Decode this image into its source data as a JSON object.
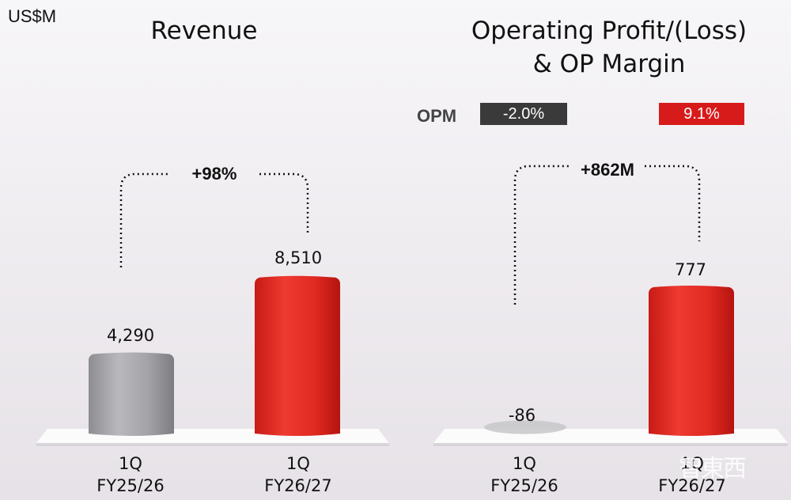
{
  "unit": "US$M",
  "watermark": "智東西",
  "chart_data": [
    {
      "type": "bar",
      "title": "Revenue",
      "categories": [
        "1Q\nFY25/26",
        "1Q\nFY26/27"
      ],
      "category_lines": [
        [
          "1Q",
          "FY25/26"
        ],
        [
          "1Q",
          "FY26/27"
        ]
      ],
      "values": [
        4290,
        8510
      ],
      "value_labels": [
        "4,290",
        "8,510"
      ],
      "change_label": "+98%",
      "colors": [
        "#9c9ca0",
        "#e02a22"
      ],
      "ylim": [
        0,
        10000
      ]
    },
    {
      "type": "bar",
      "title": "Operating Profit/(Loss)\n& OP Margin",
      "title_lines": [
        "Operating Profit/(Loss)",
        "& OP Margin"
      ],
      "categories": [
        "1Q\nFY25/26",
        "1Q\nFY26/27"
      ],
      "category_lines": [
        [
          "1Q",
          "FY25/26"
        ],
        [
          "1Q",
          "FY26/27"
        ]
      ],
      "values": [
        -86,
        777
      ],
      "value_labels": [
        "-86",
        "777"
      ],
      "change_label": "+862M",
      "opm_label": "OPM",
      "opm_values": [
        "-2.0%",
        "9.1%"
      ],
      "colors": [
        "#9c9ca0",
        "#e02a22"
      ],
      "ylim": [
        -100,
        1000
      ]
    }
  ]
}
